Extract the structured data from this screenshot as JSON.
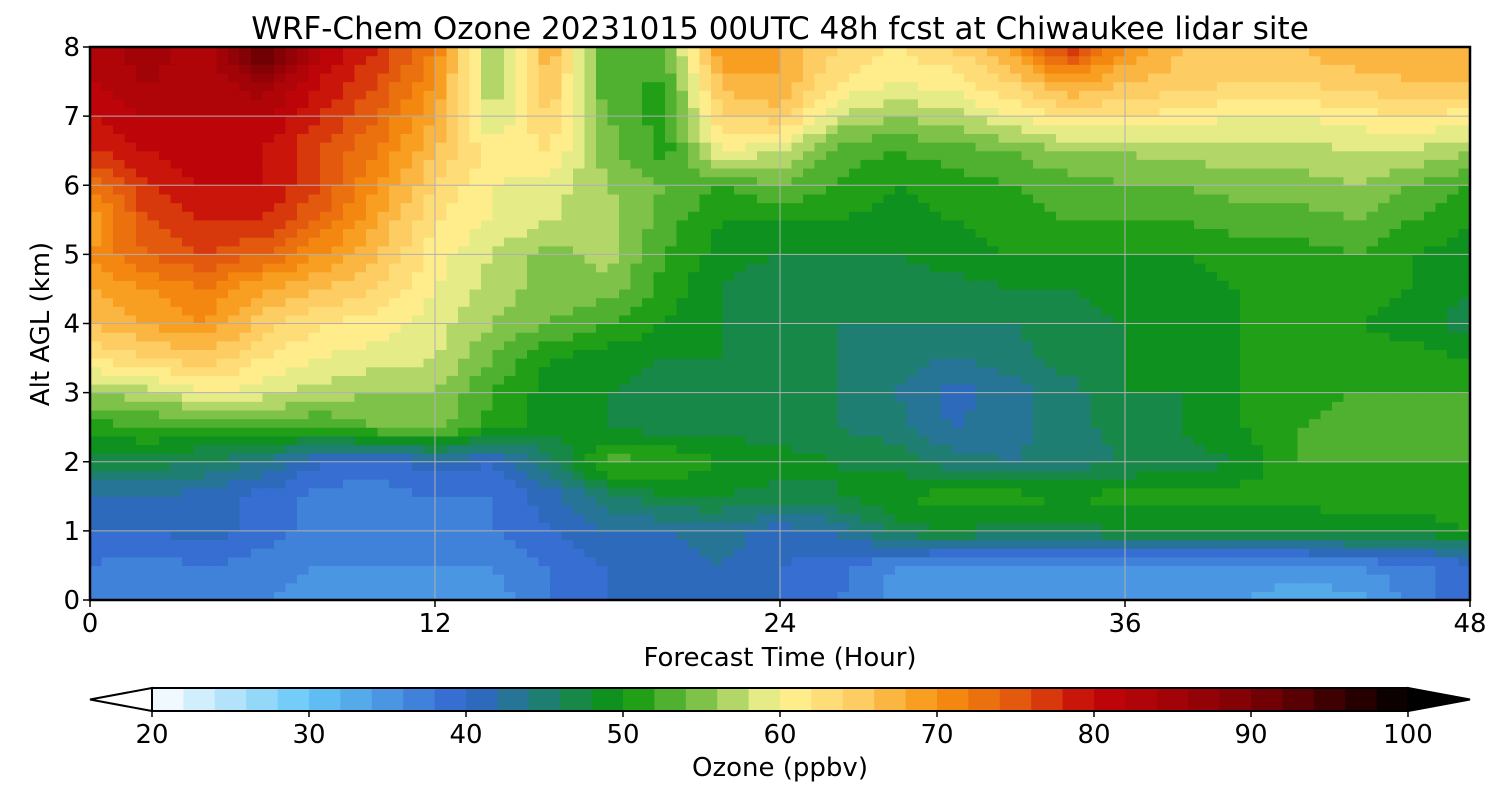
{
  "chart_data": {
    "type": "heatmap",
    "title": "WRF-Chem Ozone  20231015 00UTC 48h fcst at Chiwaukee lidar site",
    "xlabel": "Forecast Time (Hour)",
    "ylabel": "Alt AGL (km)",
    "xlim": [
      0,
      48
    ],
    "ylim": [
      0,
      8
    ],
    "x_ticks": [
      0,
      12,
      24,
      36,
      48
    ],
    "y_ticks": [
      0,
      1,
      2,
      3,
      4,
      5,
      6,
      7,
      8
    ],
    "grid": true,
    "x": [
      0,
      2,
      4,
      6,
      8,
      10,
      12,
      14,
      16,
      18,
      20,
      22,
      24,
      26,
      28,
      30,
      32,
      34,
      36,
      38,
      40,
      42,
      44,
      46,
      48
    ],
    "y": [
      0,
      0.5,
      1,
      1.5,
      2,
      2.5,
      3,
      3.5,
      4,
      4.5,
      5,
      5.5,
      6,
      6.5,
      7,
      7.5,
      8
    ],
    "values_ppbv": [
      [
        38,
        37,
        38,
        36,
        35,
        36,
        35,
        35,
        38,
        40,
        41,
        42,
        40,
        38,
        35,
        34,
        35,
        35,
        34,
        34,
        34,
        33,
        33,
        37,
        40
      ],
      [
        38,
        37,
        38,
        37,
        36,
        36,
        36,
        36,
        38,
        40,
        41,
        42,
        40,
        39,
        36,
        35,
        35,
        35,
        35,
        35,
        35,
        35,
        36,
        37,
        39
      ],
      [
        40,
        40,
        41,
        39,
        37,
        37,
        37,
        38,
        40,
        42,
        42,
        43,
        41,
        42,
        47,
        48,
        47,
        47,
        48,
        48,
        48,
        48,
        49,
        49,
        50
      ],
      [
        42,
        42,
        41,
        39,
        37,
        37,
        38,
        38,
        41,
        45,
        48,
        48,
        47,
        48,
        50,
        51,
        51,
        50,
        51,
        51,
        51,
        51,
        51,
        51,
        51
      ],
      [
        47,
        47,
        46,
        44,
        40,
        39,
        41,
        40,
        45,
        53,
        52,
        50,
        49,
        48,
        47,
        45,
        44,
        45,
        46,
        47,
        48,
        52,
        52,
        52,
        52
      ],
      [
        51,
        52,
        51,
        52,
        52,
        54,
        55,
        51,
        49,
        48,
        47,
        47,
        47,
        46,
        45,
        42,
        43,
        45,
        47,
        48,
        50,
        52,
        53,
        53,
        53
      ],
      [
        56,
        57,
        60,
        59,
        57,
        56,
        56,
        52,
        49,
        48,
        47,
        47,
        48,
        46,
        44,
        41,
        43,
        45,
        48,
        48,
        50,
        51,
        52,
        52,
        52
      ],
      [
        62,
        64,
        65,
        62,
        60,
        59,
        58,
        54,
        50,
        49,
        48,
        48,
        46,
        46,
        45,
        44,
        45,
        47,
        48,
        49,
        50,
        51,
        51,
        51,
        50
      ],
      [
        66,
        68,
        70,
        65,
        62,
        61,
        59,
        56,
        54,
        52,
        50,
        48,
        46,
        46,
        46,
        46,
        46,
        47,
        48,
        49,
        50,
        50,
        50,
        49,
        47
      ],
      [
        68,
        70,
        72,
        68,
        66,
        64,
        60,
        57,
        55,
        55,
        51,
        48,
        46,
        46,
        47,
        47,
        48,
        48,
        49,
        49,
        50,
        50,
        51,
        50,
        48
      ],
      [
        70,
        74,
        76,
        74,
        70,
        66,
        61,
        58,
        55,
        57,
        52,
        49,
        48,
        48,
        48,
        49,
        50,
        50,
        50,
        50,
        51,
        51,
        52,
        50,
        49
      ],
      [
        68,
        76,
        78,
        78,
        74,
        68,
        62,
        60,
        58,
        57,
        53,
        50,
        50,
        50,
        49,
        50,
        51,
        52,
        52,
        52,
        53,
        53,
        54,
        52,
        50
      ],
      [
        72,
        78,
        80,
        80,
        76,
        70,
        64,
        60,
        59,
        56,
        54,
        52,
        54,
        52,
        50,
        51,
        52,
        53,
        54,
        54,
        55,
        55,
        56,
        54,
        52
      ],
      [
        78,
        80,
        82,
        80,
        76,
        72,
        66,
        61,
        62,
        55,
        51,
        60,
        58,
        53,
        52,
        53,
        54,
        56,
        56,
        57,
        57,
        57,
        58,
        58,
        56
      ],
      [
        80,
        82,
        82,
        82,
        78,
        74,
        68,
        58,
        64,
        54,
        51,
        64,
        65,
        58,
        56,
        57,
        60,
        62,
        62,
        61,
        60,
        60,
        61,
        62,
        61
      ],
      [
        82,
        84,
        82,
        86,
        80,
        76,
        70,
        56,
        66,
        52,
        52,
        67,
        68,
        62,
        60,
        61,
        64,
        69,
        66,
        65,
        64,
        64,
        65,
        66,
        66
      ],
      [
        82,
        86,
        82,
        94,
        82,
        78,
        72,
        55,
        68,
        52,
        54,
        70,
        68,
        64,
        62,
        64,
        68,
        78,
        70,
        66,
        66,
        66,
        68,
        68,
        68
      ]
    ],
    "colorbar": {
      "label": "Ozone  (ppbv)",
      "min": 20,
      "max": 100,
      "ticks": [
        20,
        30,
        40,
        50,
        60,
        70,
        80,
        90,
        100
      ],
      "extend": "both",
      "colormap_stops": [
        {
          "v": 20,
          "c": "#ffffff"
        },
        {
          "v": 30,
          "c": "#64c7f7"
        },
        {
          "v": 40,
          "c": "#3165cd"
        },
        {
          "v": 45,
          "c": "#1f7e72"
        },
        {
          "v": 50,
          "c": "#0a960a"
        },
        {
          "v": 55,
          "c": "#7ec24a"
        },
        {
          "v": 60,
          "c": "#fff596"
        },
        {
          "v": 65,
          "c": "#fdcc63"
        },
        {
          "v": 70,
          "c": "#f7920f"
        },
        {
          "v": 75,
          "c": "#e35a0e"
        },
        {
          "v": 80,
          "c": "#c40509"
        },
        {
          "v": 90,
          "c": "#7d0004"
        },
        {
          "v": 100,
          "c": "#000000"
        }
      ]
    }
  }
}
